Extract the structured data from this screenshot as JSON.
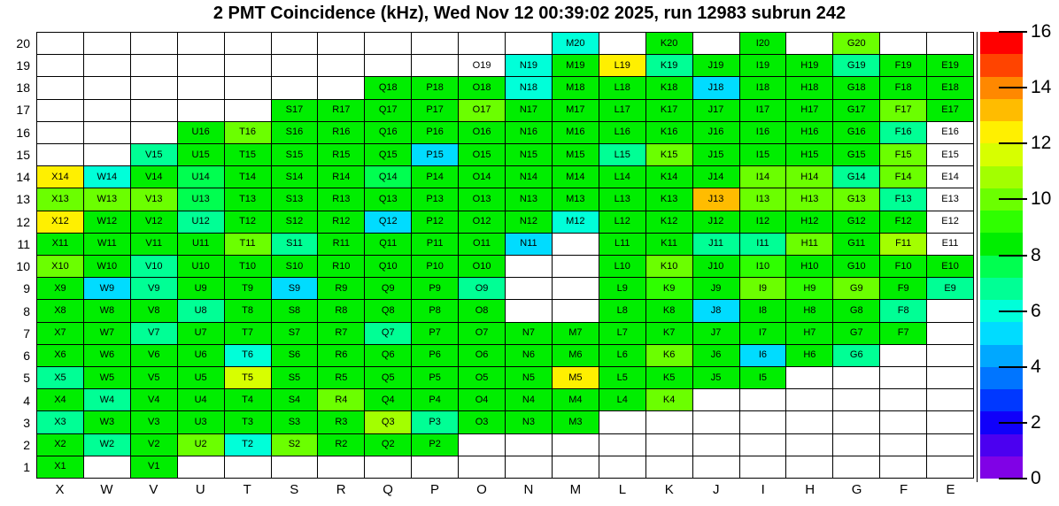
{
  "title": "2 PMT Coincidence (kHz), Wed Nov 12 00:39:02 2025, run 12983 subrun 242",
  "chart_data": {
    "type": "heatmap",
    "title": "2 PMT Coincidence (kHz), Wed Nov 12 00:39:02 2025, run 12983 subrun 242",
    "x_categories": [
      "X",
      "W",
      "V",
      "U",
      "T",
      "S",
      "R",
      "Q",
      "P",
      "O",
      "N",
      "M",
      "L",
      "K",
      "J",
      "I",
      "H",
      "G",
      "F",
      "E"
    ],
    "y_categories": [
      20,
      19,
      18,
      17,
      16,
      15,
      14,
      13,
      12,
      11,
      10,
      9,
      8,
      7,
      6,
      5,
      4,
      3,
      2,
      1
    ],
    "zlim": [
      0,
      16
    ],
    "colorbar_ticks": [
      0,
      2,
      4,
      6,
      8,
      10,
      12,
      14,
      16
    ],
    "band_size": 0.8,
    "palette": [
      "#8002e6",
      "#4b00f0",
      "#1000fa",
      "#0038ff",
      "#0075ff",
      "#00a8ff",
      "#00dcff",
      "#00ffd9",
      "#00ff95",
      "#00ff50",
      "#00ee00",
      "#2fff00",
      "#6bff00",
      "#a3ff00",
      "#d7ff00",
      "#fff000",
      "#ffbc00",
      "#ff8800",
      "#ff4400",
      "#ff0000"
    ],
    "legend_note": "values estimated from cell colors; -1 = white cell with label shown; null = empty cell",
    "values": [
      [
        null,
        null,
        null,
        null,
        null,
        null,
        null,
        null,
        null,
        null,
        null,
        6,
        null,
        8.4,
        null,
        8.4,
        null,
        10,
        null,
        null
      ],
      [
        null,
        null,
        null,
        null,
        null,
        null,
        null,
        null,
        null,
        -1,
        6,
        8.4,
        12.4,
        6.8,
        8.4,
        8.4,
        8.4,
        6.8,
        8.4,
        8.4
      ],
      [
        null,
        null,
        null,
        null,
        null,
        null,
        null,
        8.4,
        8.4,
        8.4,
        6,
        8.4,
        8.4,
        8.4,
        5.2,
        8.4,
        8.4,
        8.4,
        8.4,
        8.4
      ],
      [
        null,
        null,
        null,
        null,
        null,
        8.4,
        8.4,
        8.4,
        8.4,
        10,
        8.4,
        8.4,
        8.4,
        8.4,
        8.4,
        8.4,
        8.4,
        8.4,
        10,
        8.4
      ],
      [
        null,
        null,
        null,
        8.4,
        10,
        8.4,
        8.4,
        8.4,
        8.4,
        8.4,
        8.4,
        8.4,
        8.4,
        8.4,
        8.4,
        8.4,
        8.4,
        8.4,
        6.8,
        -1
      ],
      [
        null,
        null,
        6.8,
        8.4,
        8.4,
        8.4,
        8.4,
        8.4,
        5.2,
        8.4,
        8.4,
        8.4,
        6.8,
        10,
        8.4,
        8.4,
        8.4,
        8.4,
        10,
        -1
      ],
      [
        12.4,
        6,
        8.4,
        7.6,
        8.4,
        8.4,
        8.4,
        7.6,
        8.4,
        8.4,
        8.4,
        8.4,
        8.4,
        8.4,
        8.4,
        10,
        10,
        6.8,
        10,
        -1
      ],
      [
        10,
        10,
        10,
        7.6,
        8.4,
        8.4,
        8.4,
        8.4,
        8.4,
        8.4,
        8.4,
        8.4,
        8.4,
        8.4,
        13.2,
        10,
        10,
        10,
        6.8,
        -1
      ],
      [
        12.4,
        8.4,
        8.4,
        6.8,
        8.4,
        8.4,
        8.4,
        5.2,
        8.4,
        8.4,
        8.4,
        6,
        8.4,
        8.4,
        8.4,
        8.4,
        8.4,
        8.4,
        8.4,
        -1
      ],
      [
        8.4,
        8.4,
        8.4,
        8.4,
        10,
        6.8,
        8.4,
        8.4,
        8.4,
        8.4,
        5.2,
        null,
        8.4,
        8.4,
        6.8,
        6.8,
        10,
        8.4,
        10.8,
        -1
      ],
      [
        10,
        8.4,
        6.8,
        8.4,
        8.4,
        8.4,
        8.4,
        8.4,
        8.4,
        8.4,
        null,
        null,
        8.4,
        10,
        8.4,
        9.2,
        8.4,
        8.4,
        8.4,
        8.4
      ],
      [
        8.4,
        5.2,
        6.8,
        8.4,
        8.4,
        5.2,
        8.4,
        8.4,
        8.4,
        6.8,
        null,
        null,
        8.4,
        9.2,
        8.4,
        10,
        9.2,
        10,
        8.4,
        6.8
      ],
      [
        8.4,
        8.4,
        8.4,
        6.8,
        8.4,
        8.4,
        8.4,
        8.4,
        8.4,
        8.4,
        null,
        null,
        8.4,
        8.4,
        5.2,
        8.4,
        8.4,
        8.4,
        6.8,
        null
      ],
      [
        8.4,
        8.4,
        6.8,
        8.4,
        8.4,
        8.4,
        8.4,
        6.8,
        8.4,
        8.4,
        8.4,
        8.4,
        8.4,
        8.4,
        8.4,
        8.4,
        8.4,
        8.4,
        8.4,
        null
      ],
      [
        8.4,
        8.4,
        8.4,
        8.4,
        6,
        8.4,
        8.4,
        8.4,
        8.4,
        8.4,
        8.4,
        8.4,
        8.4,
        10,
        8.4,
        5.2,
        8.4,
        6.8,
        null,
        null
      ],
      [
        6.8,
        8.4,
        8.4,
        8.4,
        11.6,
        8.4,
        8.4,
        8.4,
        8.4,
        8.4,
        8.4,
        12.4,
        8.4,
        8.4,
        8.4,
        8.4,
        null,
        null,
        null,
        null
      ],
      [
        8.4,
        6.8,
        8.4,
        8.4,
        8.4,
        8.4,
        10,
        8.4,
        8.4,
        8.4,
        8.4,
        8.4,
        8.4,
        10,
        null,
        null,
        null,
        null,
        null,
        null
      ],
      [
        6.8,
        8.4,
        8.4,
        8.4,
        8.4,
        8.4,
        8.4,
        10.8,
        6.8,
        8.4,
        8.4,
        8.4,
        null,
        null,
        null,
        null,
        null,
        null,
        null,
        null
      ],
      [
        8.4,
        6.8,
        8.4,
        10,
        6,
        10,
        8.4,
        8.4,
        8.4,
        null,
        null,
        null,
        null,
        null,
        null,
        null,
        null,
        null,
        null,
        null
      ],
      [
        8.4,
        null,
        8.4,
        null,
        null,
        null,
        null,
        null,
        null,
        null,
        null,
        null,
        null,
        null,
        null,
        null,
        null,
        null,
        null,
        null
      ]
    ]
  }
}
